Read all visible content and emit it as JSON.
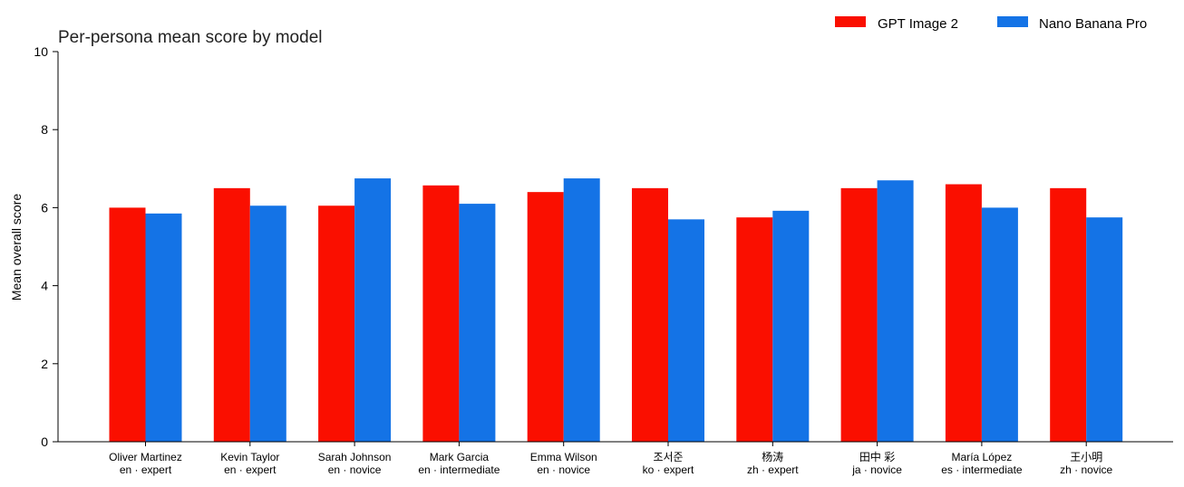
{
  "chart_data": {
    "type": "bar",
    "title": "Per-persona mean score by model",
    "xlabel": "",
    "ylabel": "Mean overall score",
    "ylim": [
      0,
      10
    ],
    "yticks": [
      0,
      2,
      4,
      6,
      8,
      10
    ],
    "grid": false,
    "legend_position": "top-right",
    "categories": [
      {
        "name": "Oliver Martinez",
        "meta": "en · expert"
      },
      {
        "name": "Kevin Taylor",
        "meta": "en · expert"
      },
      {
        "name": "Sarah Johnson",
        "meta": "en · novice"
      },
      {
        "name": "Mark Garcia",
        "meta": "en · intermediate"
      },
      {
        "name": "Emma Wilson",
        "meta": "en · novice"
      },
      {
        "name": "조서준",
        "meta": "ko · expert"
      },
      {
        "name": "杨涛",
        "meta": "zh · expert"
      },
      {
        "name": "田中 彩",
        "meta": "ja · novice"
      },
      {
        "name": "María López",
        "meta": "es · intermediate"
      },
      {
        "name": "王小明",
        "meta": "zh · novice"
      }
    ],
    "series": [
      {
        "name": "GPT Image 2",
        "color": "#fa0f00",
        "values": [
          6.0,
          6.5,
          6.05,
          6.57,
          6.4,
          6.5,
          5.75,
          6.5,
          6.6,
          6.5
        ]
      },
      {
        "name": "Nano Banana Pro",
        "color": "#1473e6",
        "values": [
          5.85,
          6.05,
          6.75,
          6.1,
          6.75,
          5.7,
          5.92,
          6.7,
          6.0,
          5.75
        ]
      }
    ]
  }
}
